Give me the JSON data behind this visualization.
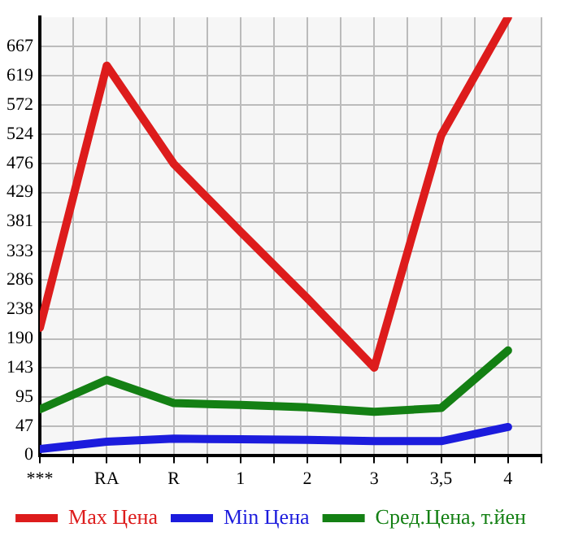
{
  "chart_data": {
    "type": "line",
    "categories": [
      "***",
      "RA",
      "R",
      "1",
      "2",
      "3",
      "3,5",
      "4"
    ],
    "series": [
      {
        "name": "Max Цена",
        "color": "#dd1c1c",
        "values": [
          208,
          636,
          476,
          365,
          256,
          143,
          522,
          715
        ]
      },
      {
        "name": "Min Цена",
        "color": "#1c1cdd",
        "values": [
          10,
          22,
          27,
          26,
          25,
          23,
          23,
          46
        ]
      },
      {
        "name": "Сред.Цена, т.йен",
        "color": "#148014",
        "values": [
          75,
          123,
          85,
          82,
          78,
          71,
          77,
          171
        ]
      }
    ],
    "ylim": [
      0,
      715
    ],
    "yticks": [
      0,
      47,
      95,
      143,
      190,
      238,
      286,
      333,
      381,
      429,
      476,
      524,
      572,
      619,
      667
    ],
    "grid": true,
    "legend": "bottom",
    "marker": "none",
    "line_style": "solid"
  }
}
